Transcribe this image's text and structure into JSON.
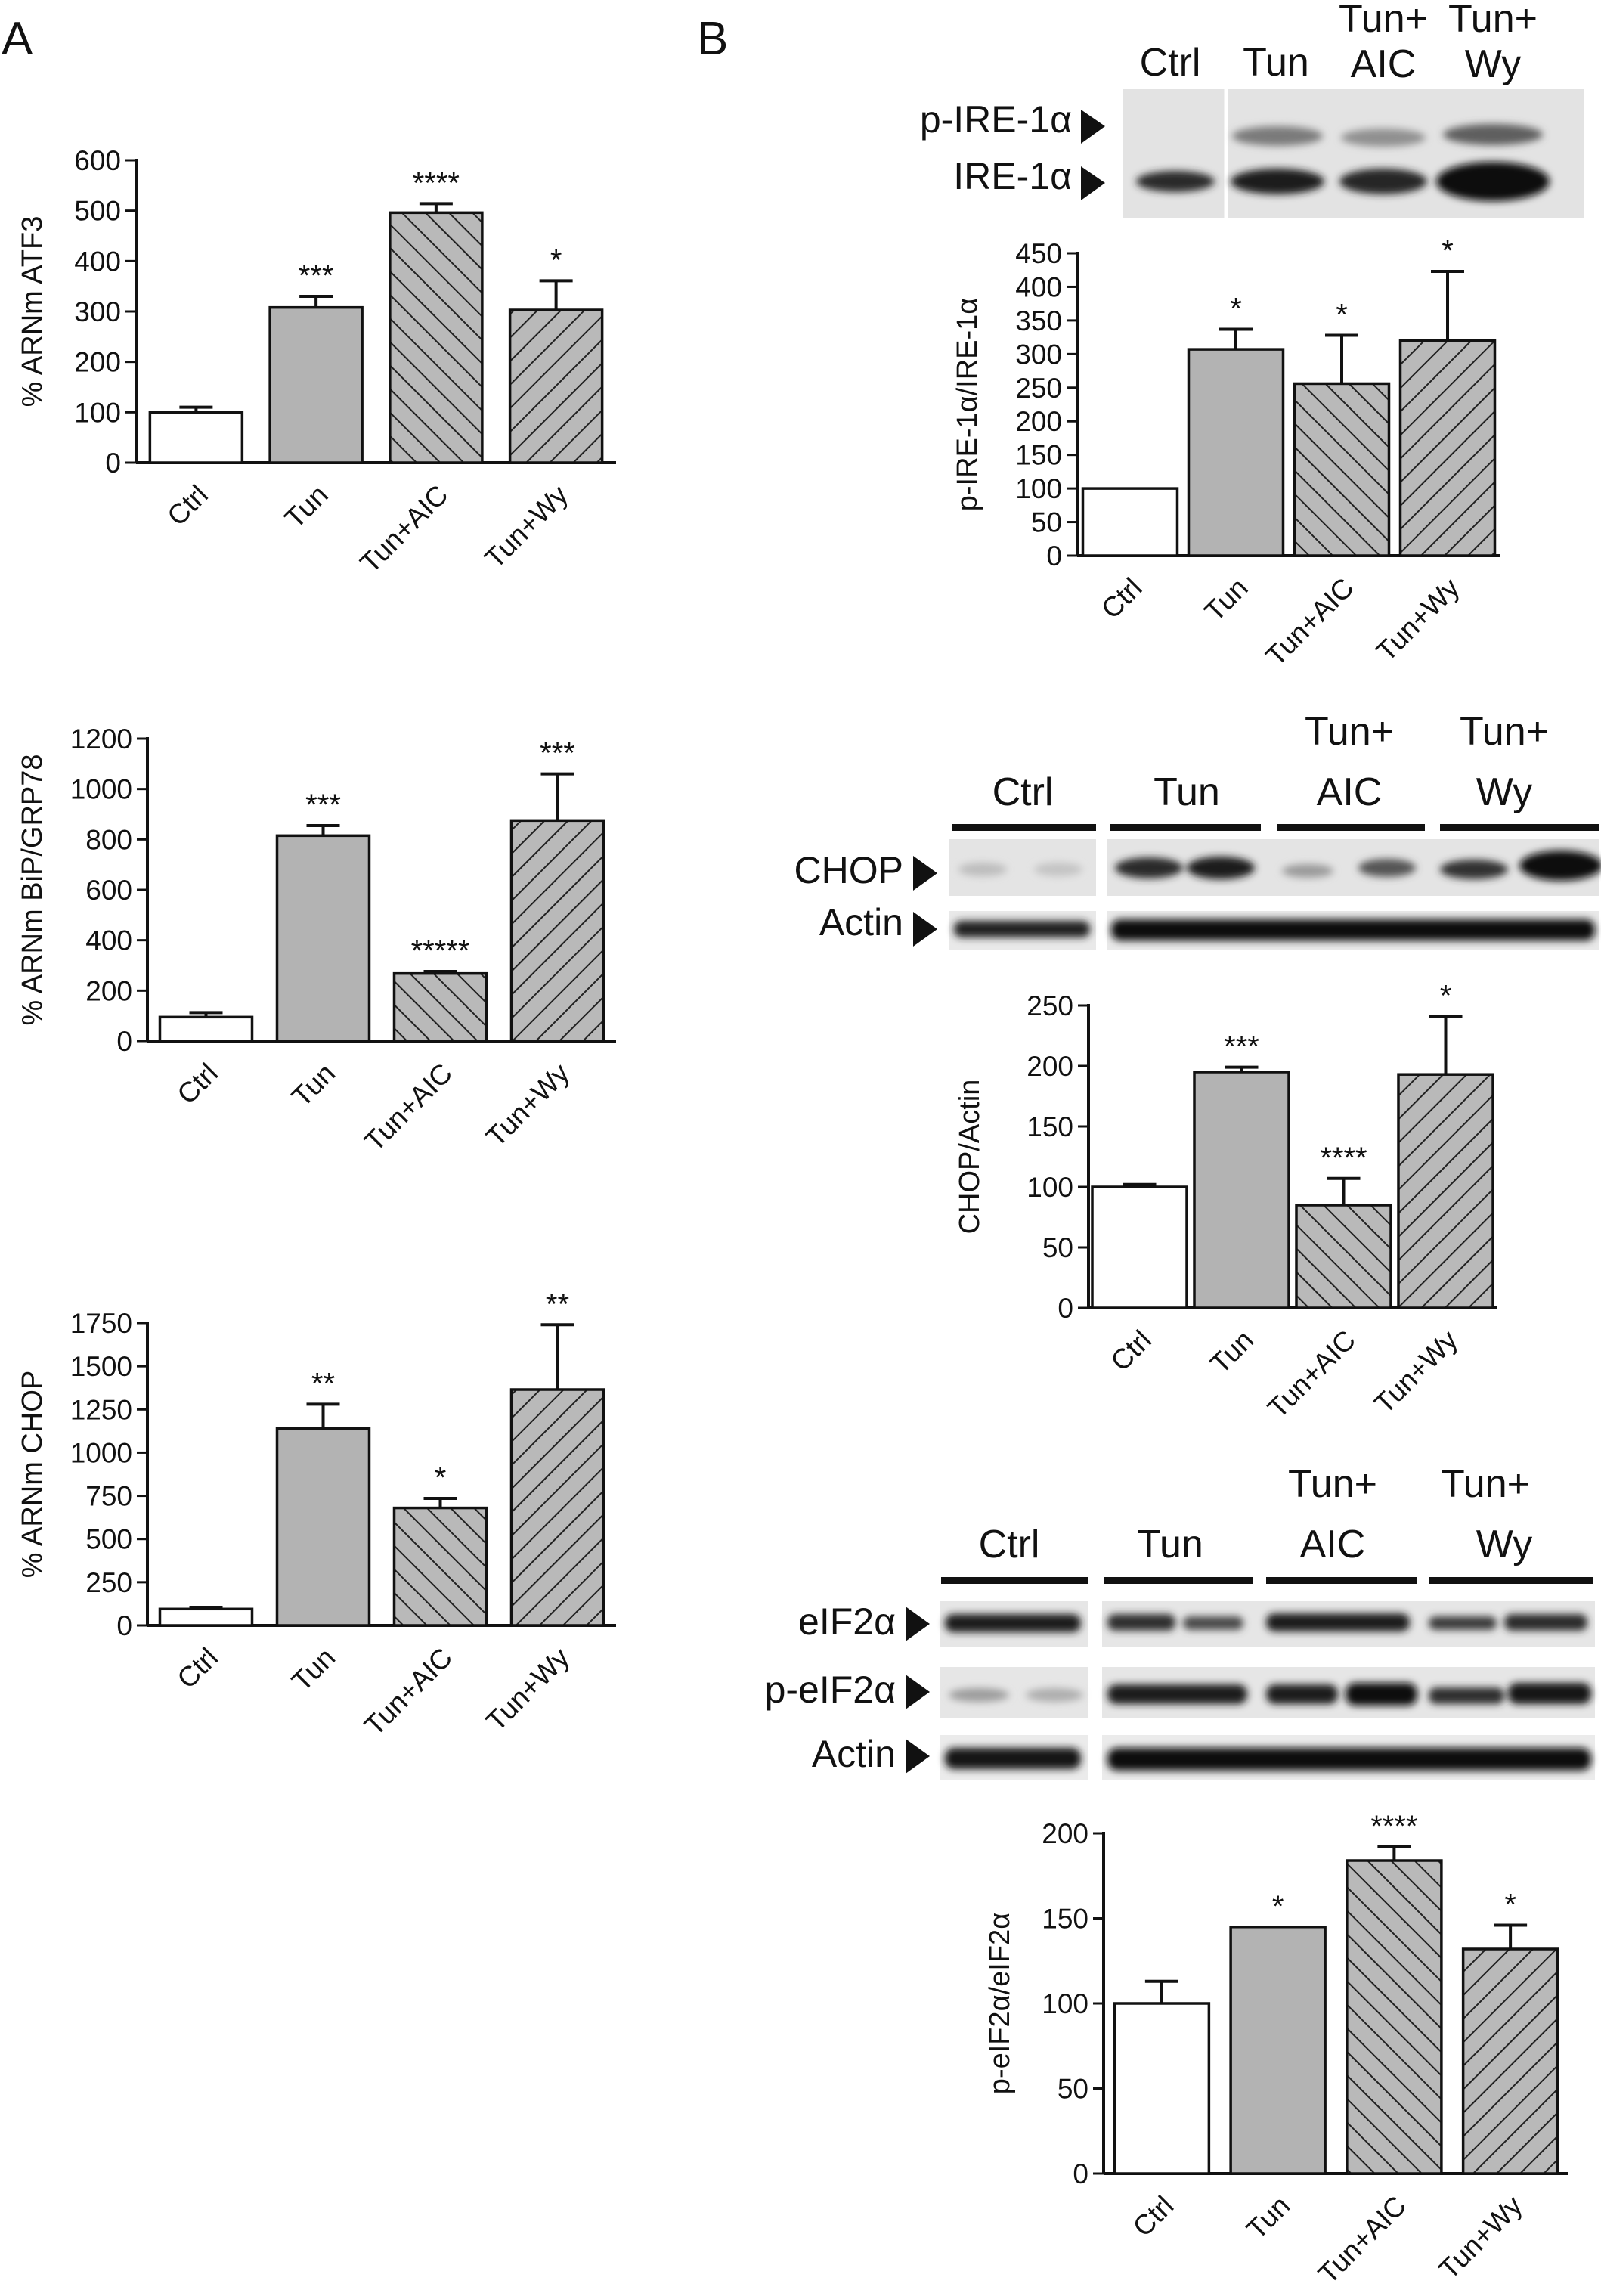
{
  "panels": {
    "A": "A",
    "B": "B"
  },
  "chart_data": [
    {
      "id": "atf3",
      "type": "bar",
      "categories": [
        "Ctrl",
        "Tun",
        "Tun+AIC",
        "Tun+Wy"
      ],
      "values": [
        100,
        308,
        496,
        303
      ],
      "errors": [
        10,
        22,
        18,
        58
      ],
      "significance": [
        "",
        "***",
        "****",
        "*"
      ],
      "ylabel": "% ARNm ATF3",
      "ylim": [
        0,
        600
      ],
      "yticks": [
        0,
        100,
        200,
        300,
        400,
        500,
        600
      ],
      "fills": [
        "white",
        "gray",
        "hatch-back",
        "hatch-fwd"
      ]
    },
    {
      "id": "bip",
      "type": "bar",
      "categories": [
        "Ctrl",
        "Tun",
        "Tun+AIC",
        "Tun+Wy"
      ],
      "values": [
        95,
        815,
        268,
        875
      ],
      "errors": [
        18,
        40,
        8,
        185
      ],
      "significance": [
        "",
        "***",
        "*****",
        "***"
      ],
      "ylabel": "% ARNm BiP/GRP78",
      "ylim": [
        0,
        1200
      ],
      "yticks": [
        0,
        200,
        400,
        600,
        800,
        1000,
        1200
      ],
      "fills": [
        "white",
        "gray",
        "hatch-back",
        "hatch-fwd"
      ]
    },
    {
      "id": "chop_mrna",
      "type": "bar",
      "categories": [
        "Ctrl",
        "Tun",
        "Tun+AIC",
        "Tun+Wy"
      ],
      "values": [
        95,
        1140,
        680,
        1365
      ],
      "errors": [
        10,
        140,
        55,
        375
      ],
      "significance": [
        "",
        "**",
        "*",
        "**"
      ],
      "ylabel": "% ARNm CHOP",
      "ylim": [
        0,
        1750
      ],
      "yticks": [
        0,
        250,
        500,
        750,
        1000,
        1250,
        1500,
        1750
      ],
      "fills": [
        "white",
        "gray",
        "hatch-back",
        "hatch-fwd"
      ]
    },
    {
      "id": "pire",
      "type": "bar",
      "categories": [
        "Ctrl",
        "Tun",
        "Tun+AIC",
        "Tun+Wy"
      ],
      "values": [
        100,
        307,
        256,
        320
      ],
      "errors": [
        0,
        30,
        72,
        103
      ],
      "significance": [
        "",
        "*",
        "*",
        "*"
      ],
      "ylabel": "p-IRE-1α/IRE-1α",
      "ylim": [
        0,
        450
      ],
      "yticks": [
        0,
        50,
        100,
        150,
        200,
        250,
        300,
        350,
        400,
        450
      ],
      "fills": [
        "white",
        "gray",
        "hatch-back",
        "hatch-fwd"
      ]
    },
    {
      "id": "chop_prot",
      "type": "bar",
      "categories": [
        "Ctrl",
        "Tun",
        "Tun+AIC",
        "Tun+Wy"
      ],
      "values": [
        100,
        195,
        85,
        193
      ],
      "errors": [
        2,
        4,
        22,
        48
      ],
      "significance": [
        "",
        "***",
        "****",
        "*"
      ],
      "ylabel": "CHOP/Actin",
      "ylim": [
        0,
        250
      ],
      "yticks": [
        0,
        50,
        100,
        150,
        200,
        250
      ],
      "fills": [
        "white",
        "gray",
        "hatch-back",
        "hatch-fwd"
      ]
    },
    {
      "id": "peif",
      "type": "bar",
      "categories": [
        "Ctrl",
        "Tun",
        "Tun+AIC",
        "Tun+Wy"
      ],
      "values": [
        100,
        145,
        184,
        132
      ],
      "errors": [
        13,
        0,
        8,
        14
      ],
      "significance": [
        "",
        "*",
        "****",
        "*"
      ],
      "ylabel": "p-eIF2α/eIF2α",
      "ylim": [
        0,
        200
      ],
      "yticks": [
        0,
        50,
        100,
        150,
        200
      ],
      "fills": [
        "white",
        "gray",
        "hatch-back",
        "hatch-fwd"
      ]
    }
  ],
  "blots": {
    "ire": {
      "headers": [
        "Ctrl",
        "Tun"
      ],
      "headers_two_line": [
        [
          "Tun+",
          "AIC"
        ],
        [
          "Tun+",
          "Wy"
        ]
      ],
      "row_labels": [
        "p-IRE-1α",
        "IRE-1α"
      ]
    },
    "chop": {
      "headers": [
        "Ctrl",
        "Tun"
      ],
      "headers_two_line": [
        [
          "Tun+",
          "AIC"
        ],
        [
          "Tun+",
          "Wy"
        ]
      ],
      "row_labels": [
        "CHOP",
        "Actin"
      ]
    },
    "eif": {
      "headers": [
        "Ctrl",
        "Tun"
      ],
      "headers_two_line": [
        [
          "Tun+",
          "AIC"
        ],
        [
          "Tun+",
          "Wy"
        ]
      ],
      "row_labels": [
        "eIF2α",
        "p-eIF2α",
        "Actin"
      ]
    }
  }
}
